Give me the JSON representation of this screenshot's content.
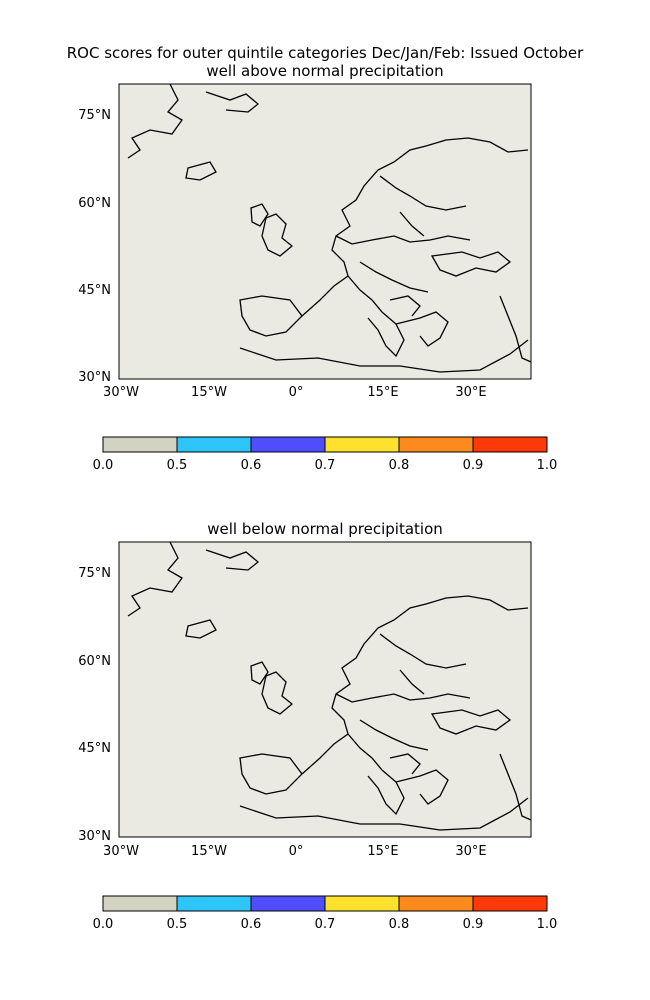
{
  "figure": {
    "title": "ROC scores for outer quintile categories Dec/Jan/Feb: Issued October"
  },
  "colorbar": {
    "levels": [
      0.0,
      0.5,
      0.6,
      0.7,
      0.8,
      0.9,
      1.0
    ],
    "labels": [
      "0.0",
      "0.5",
      "0.6",
      "0.7",
      "0.8",
      "0.9",
      "1.0"
    ],
    "colors": [
      "#d3d3c3",
      "#2ec5fb",
      "#504efc",
      "#fde12d",
      "#fd8a1c",
      "#fc3908"
    ]
  },
  "maps": [
    {
      "subtitle": "well above normal precipitation",
      "lon_ticks": [
        "30°W",
        "15°W",
        "0°",
        "15°E",
        "30°E"
      ],
      "lat_ticks": [
        "75°N",
        "60°N",
        "45°N",
        "30°N"
      ]
    },
    {
      "subtitle": "well below normal precipitation",
      "lon_ticks": [
        "30°W",
        "15°W",
        "0°",
        "15°E",
        "30°E"
      ],
      "lat_ticks": [
        "75°N",
        "60°N",
        "45°N",
        "30°N"
      ]
    }
  ],
  "chart_data": [
    {
      "type": "heatmap",
      "title": "well above normal precipitation",
      "x_range": [
        -30,
        40
      ],
      "y_range": [
        30,
        80
      ],
      "levels": [
        0.0,
        0.5,
        0.6,
        0.7,
        0.8,
        0.9,
        1.0
      ]
    },
    {
      "type": "heatmap",
      "title": "well below normal precipitation",
      "x_range": [
        -30,
        40
      ],
      "y_range": [
        30,
        80
      ],
      "levels": [
        0.0,
        0.5,
        0.6,
        0.7,
        0.8,
        0.9,
        1.0
      ]
    }
  ]
}
